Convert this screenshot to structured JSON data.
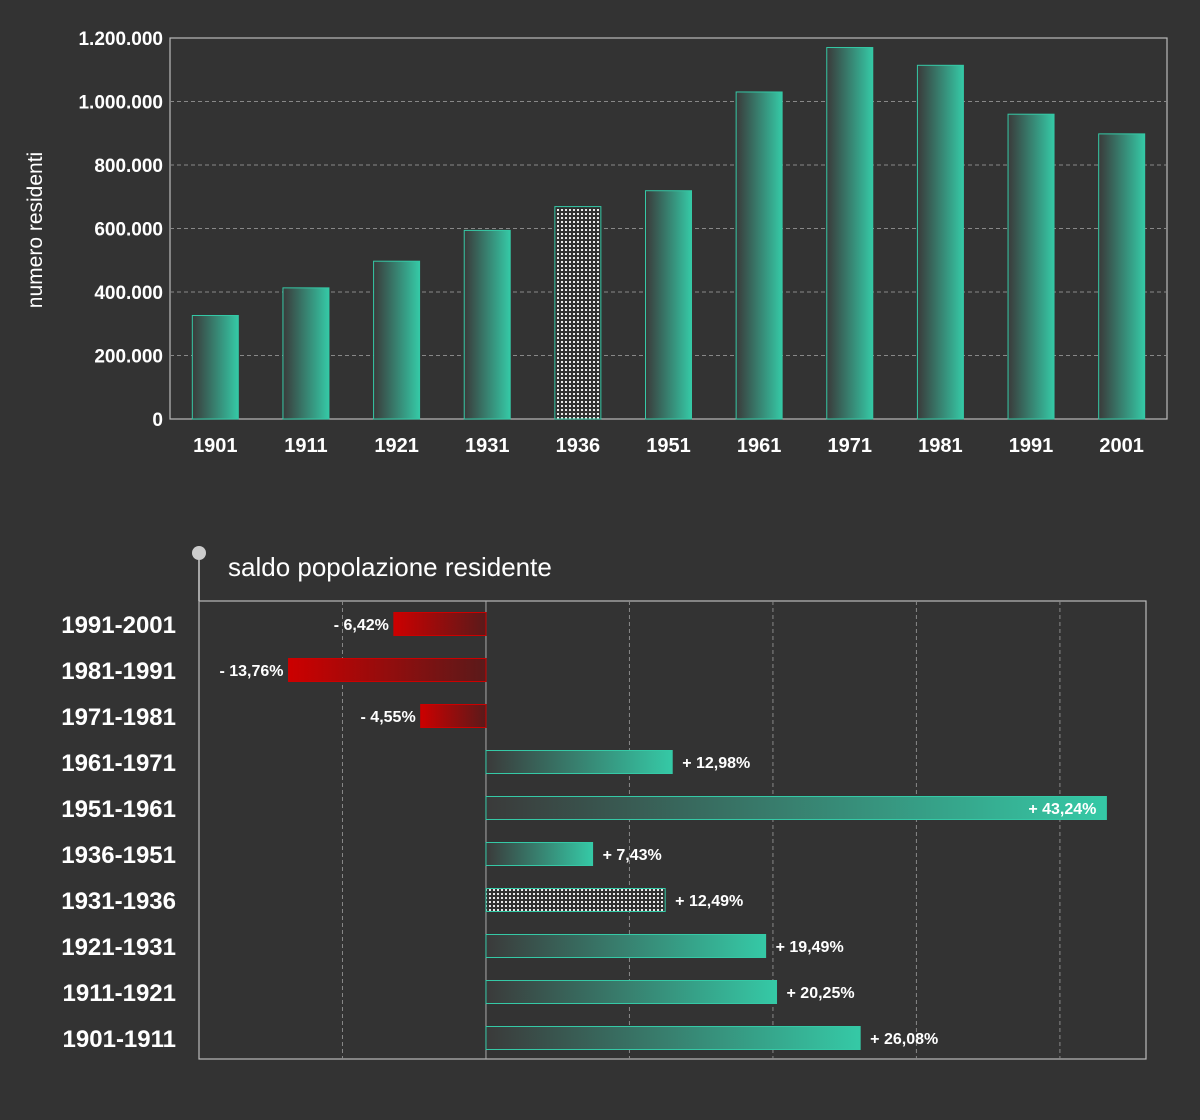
{
  "colors": {
    "background": "#333333",
    "positive_light": "#35c9a6",
    "positive_dark": "#3a3a3a",
    "negative_light": "#cc0000",
    "negative_dark": "#5a1a1a",
    "grid": "#888888",
    "frame": "#bbbbbb",
    "text": "#ffffff"
  },
  "chart_data": [
    {
      "type": "bar",
      "title": "",
      "xlabel": "",
      "ylabel": "numero residenti",
      "categories": [
        "1901",
        "1911",
        "1921",
        "1931",
        "1936",
        "1951",
        "1961",
        "1971",
        "1981",
        "1991",
        "2001"
      ],
      "values": [
        326000,
        413000,
        497000,
        594000,
        669000,
        719000,
        1030000,
        1170000,
        1114000,
        960000,
        898000
      ],
      "highlighted_category": "1936",
      "highlight_pattern": "dotted",
      "ylim": [
        0,
        1200000
      ],
      "yticks": [
        0,
        200000,
        400000,
        600000,
        800000,
        1000000,
        1200000
      ],
      "ytick_labels": [
        "0",
        "200.000",
        "400.000",
        "600.000",
        "800.000",
        "1.000.000",
        "1.200.000"
      ],
      "grid": true,
      "legend": "none"
    },
    {
      "type": "bar",
      "orientation": "horizontal",
      "title": "saldo popolazione residente",
      "xlabel": "",
      "ylabel": "",
      "categories": [
        "1991-2001",
        "1981-1991",
        "1971-1981",
        "1961-1971",
        "1951-1961",
        "1936-1951",
        "1931-1936",
        "1921-1931",
        "1911-1921",
        "1901-1911"
      ],
      "values": [
        -6.42,
        -13.76,
        -4.55,
        12.98,
        43.24,
        7.43,
        12.49,
        19.49,
        20.25,
        26.08
      ],
      "value_labels": [
        "- 6,42%",
        "- 13,76%",
        "- 4,55%",
        "+ 12,98%",
        "+ 43,24%",
        "+ 7,43%",
        "+ 12,49%",
        "+ 19,49%",
        "+ 20,25%",
        "+ 26,08%"
      ],
      "highlighted_category": "1931-1936",
      "highlight_pattern": "dotted",
      "xlim": [
        -20,
        46
      ],
      "grid": true,
      "legend": "none"
    }
  ]
}
